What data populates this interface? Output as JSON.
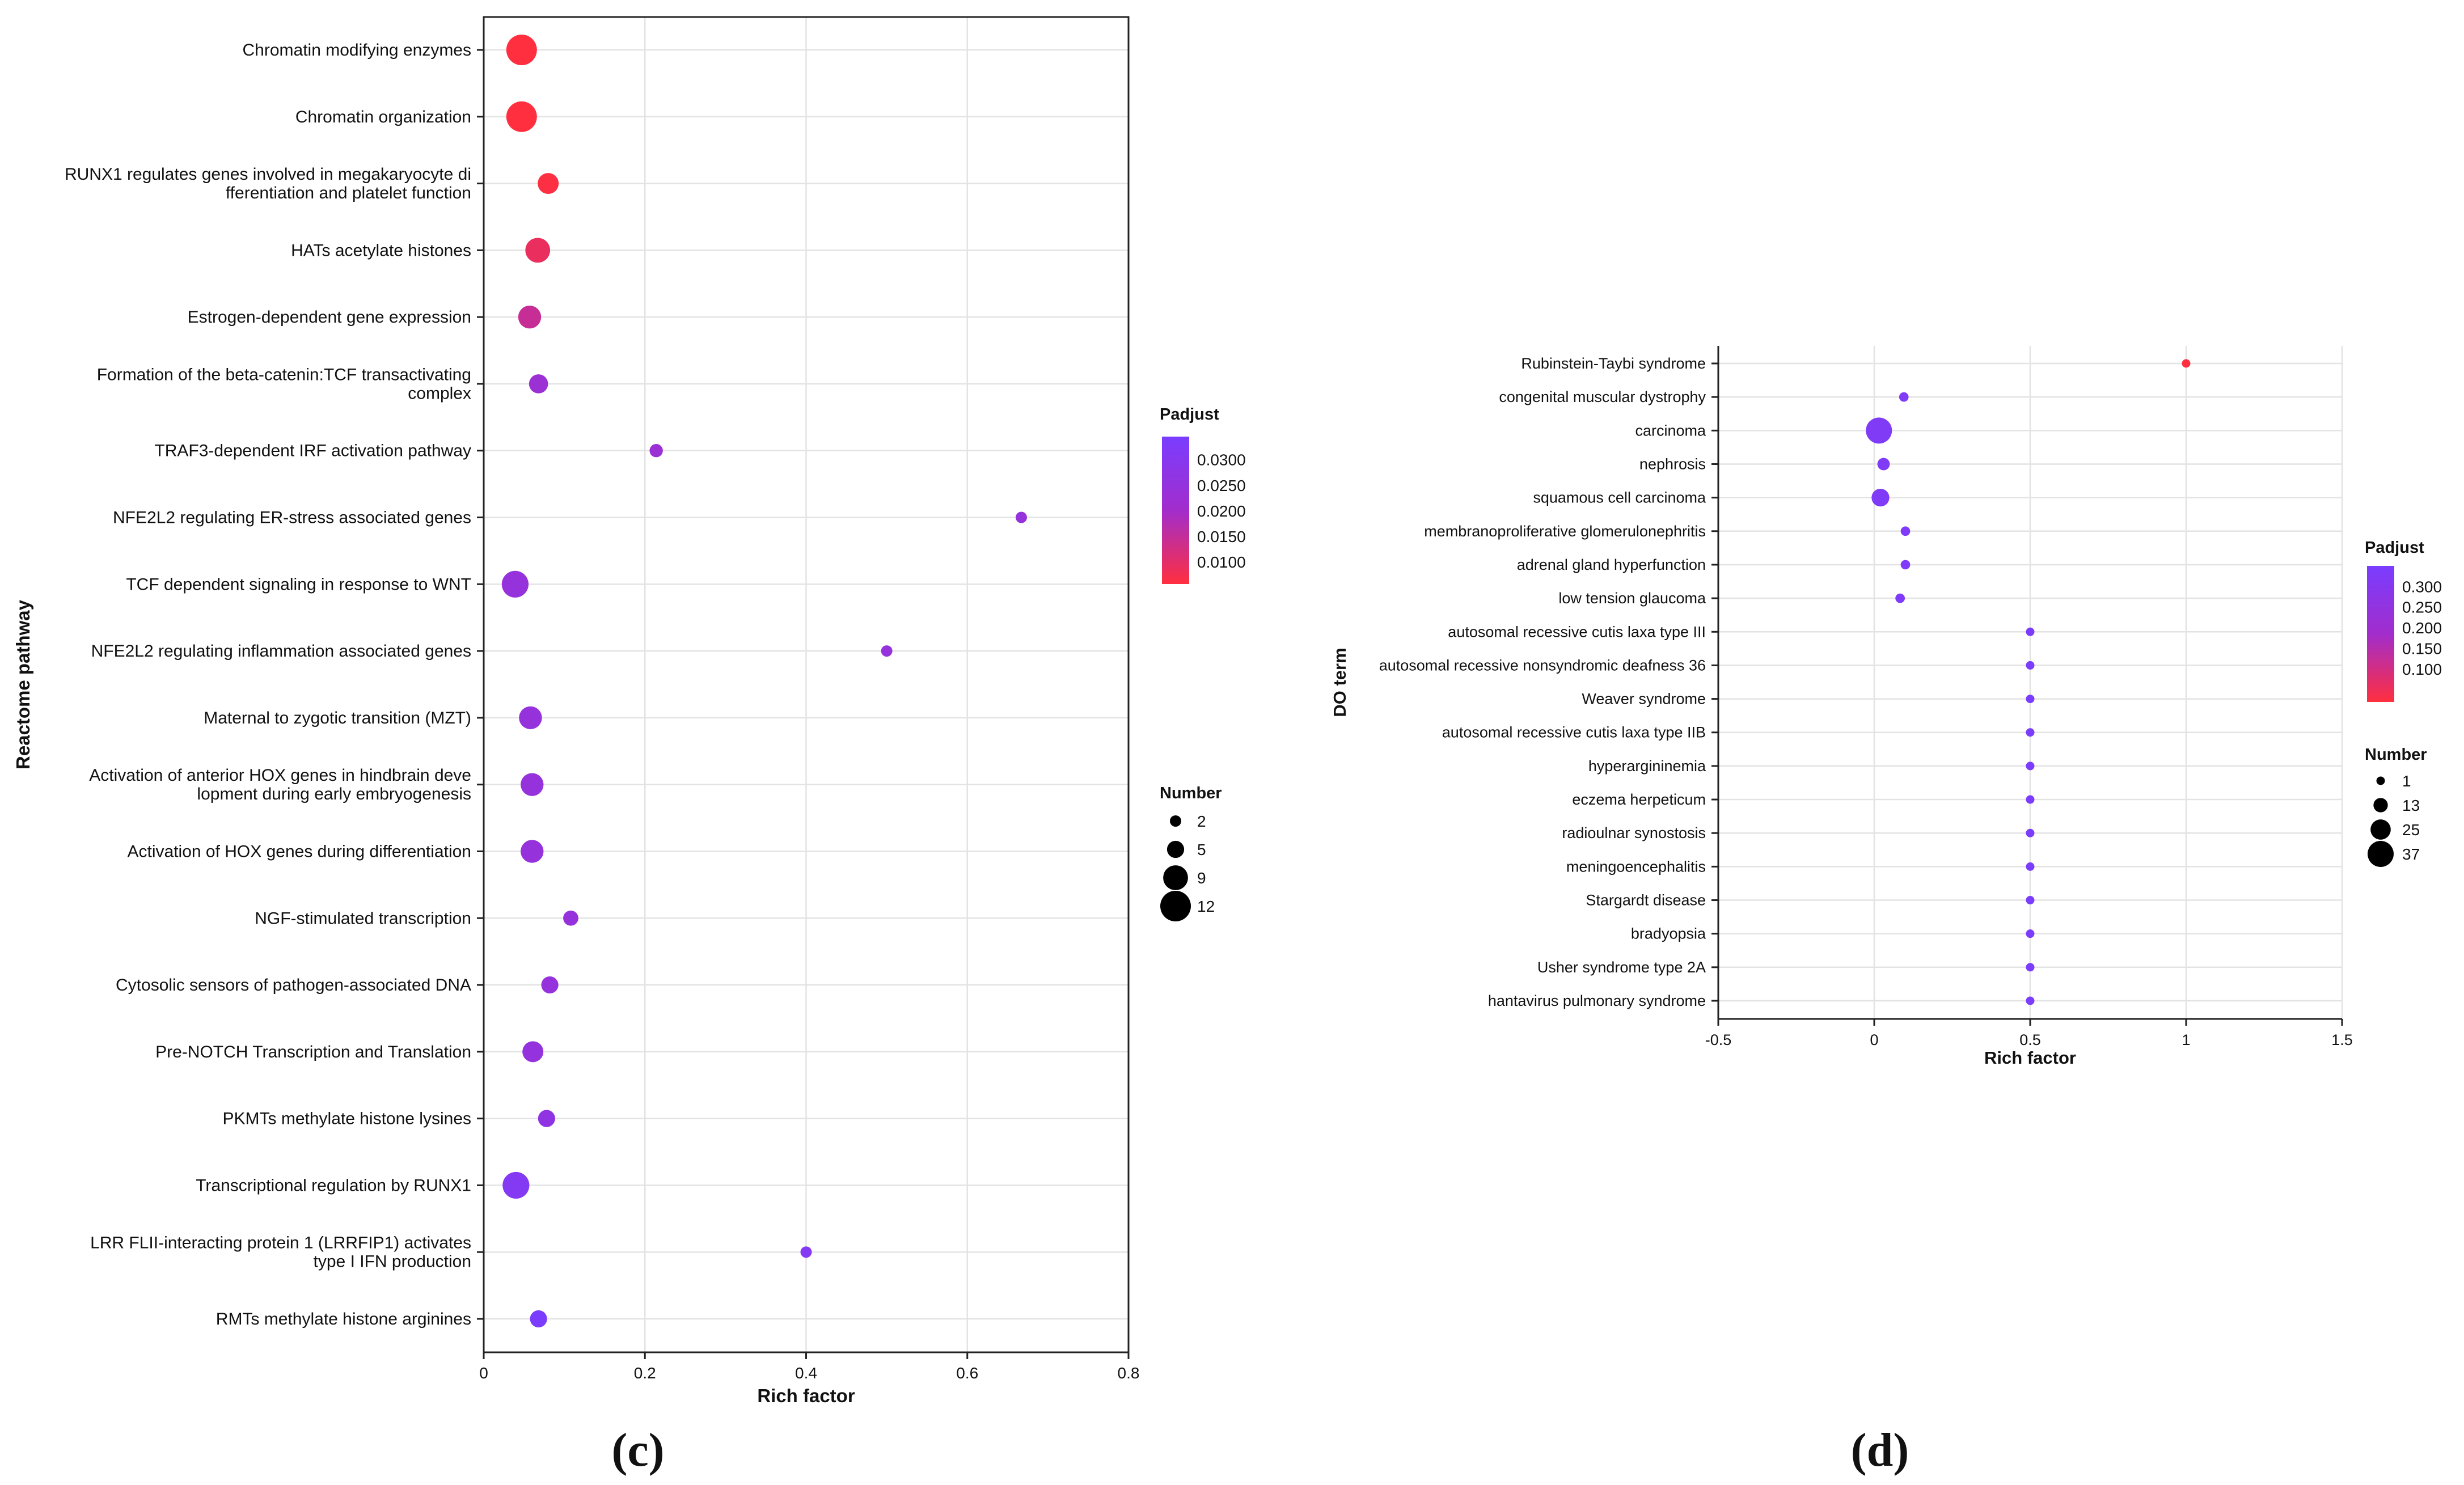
{
  "chart_data": [
    {
      "type": "scatter",
      "panel": "(c)",
      "xlabel": "Rich factor",
      "ylabel": "Reactome pathway",
      "xlim": [
        0,
        0.8
      ],
      "xticks": [
        0,
        0.2,
        0.4,
        0.6,
        0.8
      ],
      "xtick_labels": [
        "0",
        "0.2",
        "0.4",
        "0.6",
        "0.8"
      ],
      "grid": true,
      "points": [
        {
          "label": [
            "Chromatin modifying enzymes"
          ],
          "x": 0.047,
          "number": 12,
          "padjust": 0.0057
        },
        {
          "label": [
            "Chromatin organization"
          ],
          "x": 0.047,
          "number": 12,
          "padjust": 0.0057
        },
        {
          "label": [
            "RUNX1 regulates genes involved in megakaryocyte di",
            "fferentiation and platelet function"
          ],
          "x": 0.08,
          "number": 7,
          "padjust": 0.006
        },
        {
          "label": [
            "HATs acetylate histones"
          ],
          "x": 0.067,
          "number": 9,
          "padjust": 0.009
        },
        {
          "label": [
            "Estrogen-dependent gene expression"
          ],
          "x": 0.057,
          "number": 8,
          "padjust": 0.0145
        },
        {
          "label": [
            "Formation of the beta-catenin:TCF transactivating",
            "complex"
          ],
          "x": 0.068,
          "number": 6,
          "padjust": 0.0225
        },
        {
          "label": [
            "TRAF3-dependent IRF activation pathway"
          ],
          "x": 0.214,
          "number": 3,
          "padjust": 0.0225
        },
        {
          "label": [
            "NFE2L2 regulating ER-stress associated genes"
          ],
          "x": 0.667,
          "number": 2,
          "padjust": 0.0245
        },
        {
          "label": [
            "TCF dependent signaling in response to WNT"
          ],
          "x": 0.039,
          "number": 10,
          "padjust": 0.0245
        },
        {
          "label": [
            "NFE2L2 regulating inflammation associated genes"
          ],
          "x": 0.5,
          "number": 2,
          "padjust": 0.0245
        },
        {
          "label": [
            "Maternal to zygotic transition (MZT)"
          ],
          "x": 0.058,
          "number": 8,
          "padjust": 0.0245
        },
        {
          "label": [
            "Activation of anterior HOX genes in hindbrain deve",
            "lopment during early embryogenesis"
          ],
          "x": 0.06,
          "number": 8,
          "padjust": 0.0245
        },
        {
          "label": [
            "Activation of HOX genes during differentiation"
          ],
          "x": 0.06,
          "number": 8,
          "padjust": 0.0245
        },
        {
          "label": [
            "NGF-stimulated transcription"
          ],
          "x": 0.108,
          "number": 4,
          "padjust": 0.0245
        },
        {
          "label": [
            "Cytosolic sensors of pathogen-associated DNA"
          ],
          "x": 0.082,
          "number": 5,
          "padjust": 0.0245
        },
        {
          "label": [
            "Pre-NOTCH Transcription and Translation"
          ],
          "x": 0.061,
          "number": 7,
          "padjust": 0.025
        },
        {
          "label": [
            "PKMTs methylate histone lysines"
          ],
          "x": 0.078,
          "number": 5,
          "padjust": 0.0265
        },
        {
          "label": [
            "Transcriptional regulation by RUNX1"
          ],
          "x": 0.04,
          "number": 10,
          "padjust": 0.031
        },
        {
          "label": [
            "LRR FLII-interacting protein 1 (LRRFIP1) activates",
            "type I IFN production"
          ],
          "x": 0.4,
          "number": 2,
          "padjust": 0.031
        },
        {
          "label": [
            "RMTs methylate histone arginines"
          ],
          "x": 0.068,
          "number": 5,
          "padjust": 0.034
        }
      ],
      "legend": {
        "color_title": "Padjust",
        "color_range": [
          0.0057,
          0.0345
        ],
        "color_low": "#ff2f3f",
        "color_mid": "#a22dcc",
        "color_high": "#7a3dff",
        "color_ticks": [
          0.01,
          0.015,
          0.02,
          0.025,
          0.03
        ],
        "color_tick_labels": [
          "0.0100",
          "0.0150",
          "0.0200",
          "0.0250",
          "0.0300"
        ],
        "size_title": "Number",
        "size_range": [
          2,
          12
        ],
        "size_ticks": [
          2,
          5,
          9,
          12
        ],
        "size_tick_labels": [
          "2",
          "5",
          "9",
          "12"
        ]
      }
    },
    {
      "type": "scatter",
      "panel": "(d)",
      "xlabel": "Rich factor",
      "ylabel": "DO term",
      "xlim": [
        -0.5,
        1.5
      ],
      "xticks": [
        -0.5,
        0,
        0.5,
        1,
        1.5
      ],
      "xtick_labels": [
        "-0.5",
        "0",
        "0.5",
        "1",
        "1.5"
      ],
      "grid": true,
      "points": [
        {
          "label": [
            "Rubinstein-Taybi syndrome"
          ],
          "x": 1.0,
          "number": 1,
          "padjust": 0.02
        },
        {
          "label": [
            "congenital muscular dystrophy"
          ],
          "x": 0.095,
          "number": 3,
          "padjust": 0.325
        },
        {
          "label": [
            "carcinoma"
          ],
          "x": 0.015,
          "number": 37,
          "padjust": 0.325
        },
        {
          "label": [
            "nephrosis"
          ],
          "x": 0.03,
          "number": 9,
          "padjust": 0.325
        },
        {
          "label": [
            "squamous cell carcinoma"
          ],
          "x": 0.02,
          "number": 20,
          "padjust": 0.325
        },
        {
          "label": [
            "membranoproliferative glomerulonephritis"
          ],
          "x": 0.1,
          "number": 3,
          "padjust": 0.33
        },
        {
          "label": [
            "adrenal gland hyperfunction"
          ],
          "x": 0.1,
          "number": 3,
          "padjust": 0.33
        },
        {
          "label": [
            "low tension glaucoma"
          ],
          "x": 0.083,
          "number": 3,
          "padjust": 0.33
        },
        {
          "label": [
            "autosomal recessive cutis laxa type III"
          ],
          "x": 0.5,
          "number": 1,
          "padjust": 0.34
        },
        {
          "label": [
            "autosomal recessive nonsyndromic deafness 36"
          ],
          "x": 0.5,
          "number": 1,
          "padjust": 0.34
        },
        {
          "label": [
            "Weaver syndrome"
          ],
          "x": 0.5,
          "number": 1,
          "padjust": 0.34
        },
        {
          "label": [
            "autosomal recessive cutis laxa type IIB"
          ],
          "x": 0.5,
          "number": 1,
          "padjust": 0.34
        },
        {
          "label": [
            "hyperargininemia"
          ],
          "x": 0.5,
          "number": 1,
          "padjust": 0.34
        },
        {
          "label": [
            "eczema herpeticum"
          ],
          "x": 0.5,
          "number": 1,
          "padjust": 0.34
        },
        {
          "label": [
            "radioulnar synostosis"
          ],
          "x": 0.5,
          "number": 1,
          "padjust": 0.34
        },
        {
          "label": [
            "meningoencephalitis"
          ],
          "x": 0.5,
          "number": 1,
          "padjust": 0.34
        },
        {
          "label": [
            "Stargardt disease"
          ],
          "x": 0.5,
          "number": 1,
          "padjust": 0.34
        },
        {
          "label": [
            "bradyopsia"
          ],
          "x": 0.5,
          "number": 1,
          "padjust": 0.34
        },
        {
          "label": [
            "Usher syndrome type 2A"
          ],
          "x": 0.5,
          "number": 1,
          "padjust": 0.34
        },
        {
          "label": [
            "hantavirus pulmonary syndrome"
          ],
          "x": 0.5,
          "number": 1,
          "padjust": 0.34
        }
      ],
      "legend": {
        "color_title": "Padjust",
        "color_range": [
          0.02,
          0.35
        ],
        "color_low": "#ff2f3f",
        "color_mid": "#a22dcc",
        "color_high": "#7a3dff",
        "color_ticks": [
          0.1,
          0.15,
          0.2,
          0.25,
          0.3
        ],
        "color_tick_labels": [
          "0.100",
          "0.150",
          "0.200",
          "0.250",
          "0.300"
        ],
        "size_title": "Number",
        "size_range": [
          1,
          37
        ],
        "size_ticks": [
          1,
          13,
          25,
          37
        ],
        "size_tick_labels": [
          "1",
          "13",
          "25",
          "37"
        ]
      }
    }
  ]
}
